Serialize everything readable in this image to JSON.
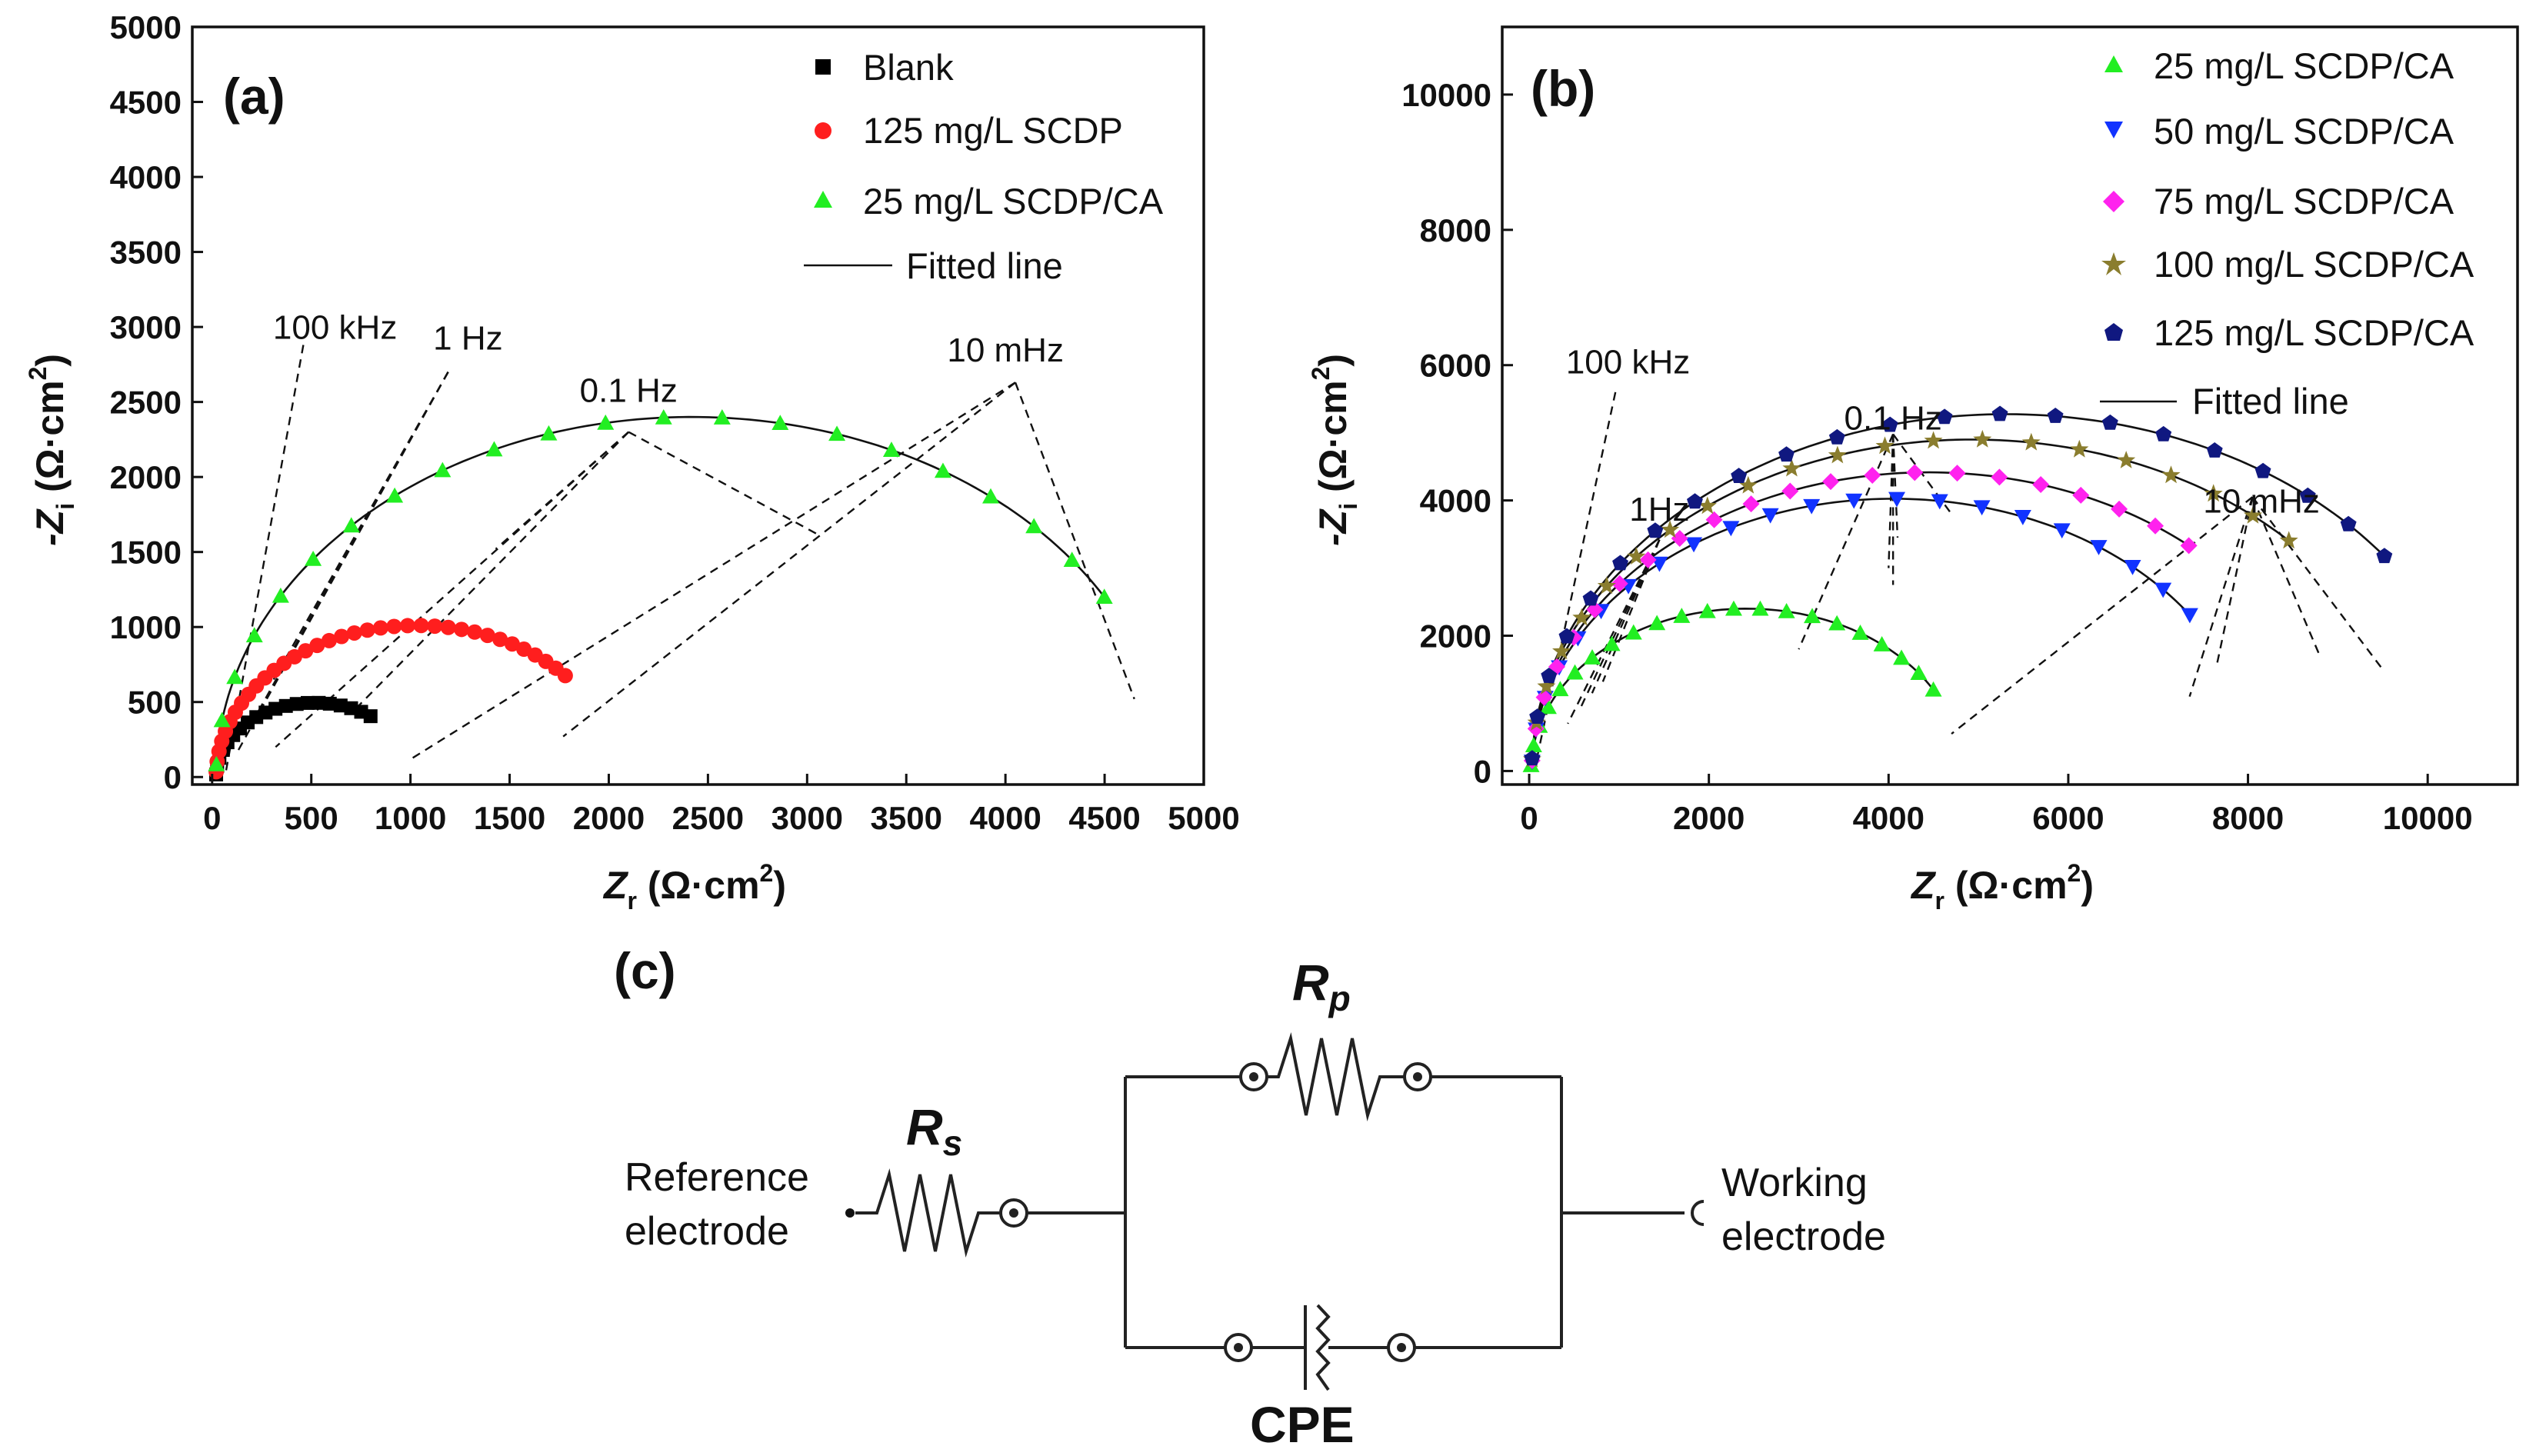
{
  "colors": {
    "blank": "#000000",
    "scdp125": "#ff1e1e",
    "green": "#22ee22",
    "blue": "#1133ff",
    "magenta": "#ff22ee",
    "olive": "#8a7d2e",
    "navy": "#101880",
    "fit": "#111111"
  },
  "chart_data": [
    {
      "type": "scatter",
      "panel_label": "(a)",
      "xlabel_main": "Z",
      "xlabel_sub": "r",
      "xlabel_unit": " (Ω·cm",
      "xlabel_sup": "2",
      "xlabel_close": ")",
      "ylabel_main": "-Z",
      "ylabel_sub": "i",
      "ylabel_unit": " (Ω·cm",
      "ylabel_sup": "2",
      "ylabel_close": ")",
      "xlim": [
        -100,
        5000
      ],
      "ylim": [
        -50,
        5000
      ],
      "xticks": [
        0,
        500,
        1000,
        1500,
        2000,
        2500,
        3000,
        3500,
        4000,
        4500,
        5000
      ],
      "yticks": [
        0,
        500,
        1000,
        1500,
        2000,
        2500,
        3000,
        3500,
        4000,
        4500,
        5000
      ],
      "series": [
        {
          "name": "Blank",
          "marker": "square",
          "color_key": "blank",
          "rs": 20,
          "rp": 990,
          "theta_end": 55,
          "n": 20
        },
        {
          "name": "125 mg/L SCDP",
          "marker": "circle",
          "color_key": "scdp125",
          "rs": 20,
          "rp": 2020,
          "theta_end": 42,
          "n": 36
        },
        {
          "name": "25 mg/L SCDP/CA",
          "marker": "triangle-up",
          "color_key": "green",
          "rs": 20,
          "rp": 4800,
          "theta_end": 30,
          "n": 22
        }
      ],
      "fit_legend": "Fitted line",
      "annotations": [
        {
          "text": "100 kHz",
          "x": 620,
          "y": 2920
        },
        {
          "text": "1 Hz",
          "x": 1290,
          "y": 2850
        },
        {
          "text": "0.1 Hz",
          "x": 2100,
          "y": 2500
        },
        {
          "text": "10 mHz",
          "x": 4000,
          "y": 2770
        }
      ],
      "leader_lines": [
        {
          "from": [
            460,
            2880
          ],
          "to": [
            70,
            40
          ]
        },
        {
          "from": [
            1190,
            2700
          ],
          "to": [
            120,
            150
          ]
        },
        {
          "from": [
            1190,
            2700
          ],
          "to": [
            200,
            360
          ]
        },
        {
          "from": [
            1190,
            2700
          ],
          "to": [
            310,
            650
          ]
        },
        {
          "from": [
            2100,
            2300
          ],
          "to": [
            320,
            200
          ]
        },
        {
          "from": [
            2100,
            2300
          ],
          "to": [
            720,
            450
          ]
        },
        {
          "from": [
            2100,
            2300
          ],
          "to": [
            1430,
            1520
          ]
        },
        {
          "from": [
            4050,
            2630
          ],
          "to": [
            990,
            110
          ]
        },
        {
          "from": [
            4050,
            2630
          ],
          "to": [
            1770,
            270
          ]
        },
        {
          "from": [
            4050,
            2630
          ],
          "to": [
            4650,
            520
          ]
        },
        {
          "from": [
            2100,
            2300
          ],
          "to": [
            3050,
            1620
          ]
        }
      ]
    },
    {
      "type": "scatter",
      "panel_label": "(b)",
      "xlabel_main": "Z",
      "xlabel_sub": "r",
      "xlabel_unit": " (Ω·cm",
      "xlabel_sup": "2",
      "xlabel_close": ")",
      "ylabel_main": "-Z",
      "ylabel_sub": "i",
      "ylabel_unit": " (Ω·cm",
      "ylabel_sup": "2",
      "ylabel_close": ")",
      "xlim": [
        -300,
        11000
      ],
      "ylim": [
        -200,
        11000
      ],
      "xticks": [
        0,
        2000,
        4000,
        6000,
        8000,
        10000
      ],
      "yticks": [
        0,
        2000,
        4000,
        6000,
        8000,
        10000
      ],
      "series": [
        {
          "name": "25 mg/L SCDP/CA",
          "marker": "triangle-up",
          "color_key": "green",
          "rs": 20,
          "rp": 4800,
          "theta_end": 30,
          "n": 22
        },
        {
          "name": "50 mg/L SCDP/CA",
          "marker": "triangle-down",
          "color_key": "blue",
          "rs": 30,
          "rp": 8050,
          "theta_end": 35,
          "n": 22
        },
        {
          "name": "75 mg/L SCDP/CA",
          "marker": "diamond",
          "color_key": "magenta",
          "rs": 30,
          "rp": 8830,
          "theta_end": 49,
          "n": 22
        },
        {
          "name": "100 mg/L SCDP/CA",
          "marker": "star",
          "color_key": "olive",
          "rs": 30,
          "rp": 9800,
          "theta_end": 44,
          "n": 22
        },
        {
          "name": "125 mg/L SCDP/CA",
          "marker": "pentagon",
          "color_key": "navy",
          "rs": 30,
          "rp": 10550,
          "theta_end": 37,
          "n": 22
        }
      ],
      "fit_legend": "Fitted line",
      "annotations": [
        {
          "text": "100 kHz",
          "x": 1100,
          "y": 5880
        },
        {
          "text": "1Hz",
          "x": 1450,
          "y": 3700
        },
        {
          "text": "0.1 Hz",
          "x": 4050,
          "y": 5050
        },
        {
          "text": "10 mHz",
          "x": 8150,
          "y": 3820
        }
      ],
      "leader_lines": [
        {
          "from": [
            960,
            5600
          ],
          "to": [
            80,
            150
          ]
        },
        {
          "from": [
            1450,
            3420
          ],
          "to": [
            430,
            700
          ]
        },
        {
          "from": [
            1450,
            3420
          ],
          "to": [
            560,
            900
          ]
        },
        {
          "from": [
            1450,
            3420
          ],
          "to": [
            700,
            1150
          ]
        },
        {
          "from": [
            1450,
            3420
          ],
          "to": [
            820,
            1320
          ]
        },
        {
          "from": [
            4050,
            4980
          ],
          "to": [
            3000,
            1800
          ]
        },
        {
          "from": [
            4050,
            4980
          ],
          "to": [
            4000,
            3000
          ]
        },
        {
          "from": [
            4050,
            4980
          ],
          "to": [
            4050,
            2750
          ]
        },
        {
          "from": [
            4050,
            4980
          ],
          "to": [
            4100,
            3450
          ]
        },
        {
          "from": [
            4050,
            4980
          ],
          "to": [
            4700,
            3800
          ]
        },
        {
          "from": [
            8050,
            4050
          ],
          "to": [
            4700,
            550
          ]
        },
        {
          "from": [
            8050,
            4050
          ],
          "to": [
            7350,
            1100
          ]
        },
        {
          "from": [
            8050,
            4050
          ],
          "to": [
            7650,
            1550
          ]
        },
        {
          "from": [
            8050,
            4050
          ],
          "to": [
            8800,
            1700
          ]
        },
        {
          "from": [
            8050,
            4050
          ],
          "to": [
            9500,
            1500
          ]
        }
      ]
    }
  ],
  "circuit": {
    "panel_label": "(c)",
    "rs_main": "R",
    "rs_sub": "s",
    "rp_main": "R",
    "rp_sub": "p",
    "cpe_label": "CPE",
    "reference_line1": "Reference",
    "reference_line2": "electrode",
    "working_line1": "Working",
    "working_line2": "electrode"
  }
}
